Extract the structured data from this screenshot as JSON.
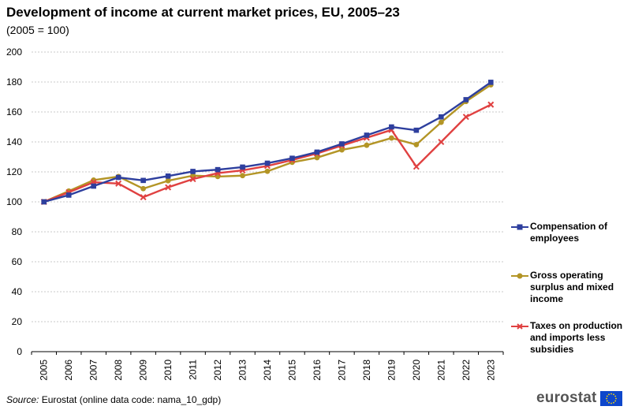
{
  "header": {
    "title": "Development of income at current market prices, EU, 2005–23",
    "subtitle": "(2005 = 100)"
  },
  "footer": {
    "source_prefix": "Source:",
    "source_text": " Eurostat (online data code: nama_10_gdp)",
    "logo_text": "eurostat",
    "flag_color": "#0e47cb",
    "star_color": "#ffdd00"
  },
  "chart_data": {
    "type": "line",
    "title": "Development of income at current market prices, EU, 2005–23",
    "subtitle": "(2005 = 100)",
    "x": [
      "2005",
      "2006",
      "2007",
      "2008",
      "2009",
      "2010",
      "2011",
      "2012",
      "2013",
      "2014",
      "2015",
      "2016",
      "2017",
      "2018",
      "2019",
      "2020",
      "2021",
      "2022",
      "2023"
    ],
    "ylim": [
      0,
      200
    ],
    "yticks": [
      0,
      20,
      40,
      60,
      80,
      100,
      120,
      140,
      160,
      180,
      200
    ],
    "grid": true,
    "legend_position": "right",
    "series": [
      {
        "name": "Compensation of employees",
        "color": "#2e3f9e",
        "marker": "square",
        "values": [
          100,
          104.5,
          110.5,
          116.3,
          114.3,
          117.2,
          120.3,
          121.5,
          123.2,
          125.8,
          129.1,
          133.2,
          138.7,
          144.5,
          150,
          147.8,
          156.7,
          168.2,
          179.8
        ]
      },
      {
        "name": "Gross operating surplus and mixed income",
        "color": "#b39526",
        "marker": "circle",
        "values": [
          100,
          107.2,
          114.5,
          116.9,
          108.8,
          114.1,
          117.5,
          116.9,
          117.5,
          120.4,
          126.4,
          129.5,
          134.7,
          137.8,
          142.6,
          138.2,
          153.1,
          167,
          178.1
        ]
      },
      {
        "name": "Taxes on production and imports less subsidies",
        "color": "#e04141",
        "marker": "x",
        "values": [
          100,
          106.4,
          113.1,
          112.2,
          103.1,
          109.7,
          115.2,
          119.2,
          121,
          124,
          127.9,
          132.3,
          137.6,
          142.8,
          148,
          123.5,
          140,
          156.7,
          164.9
        ]
      }
    ]
  }
}
